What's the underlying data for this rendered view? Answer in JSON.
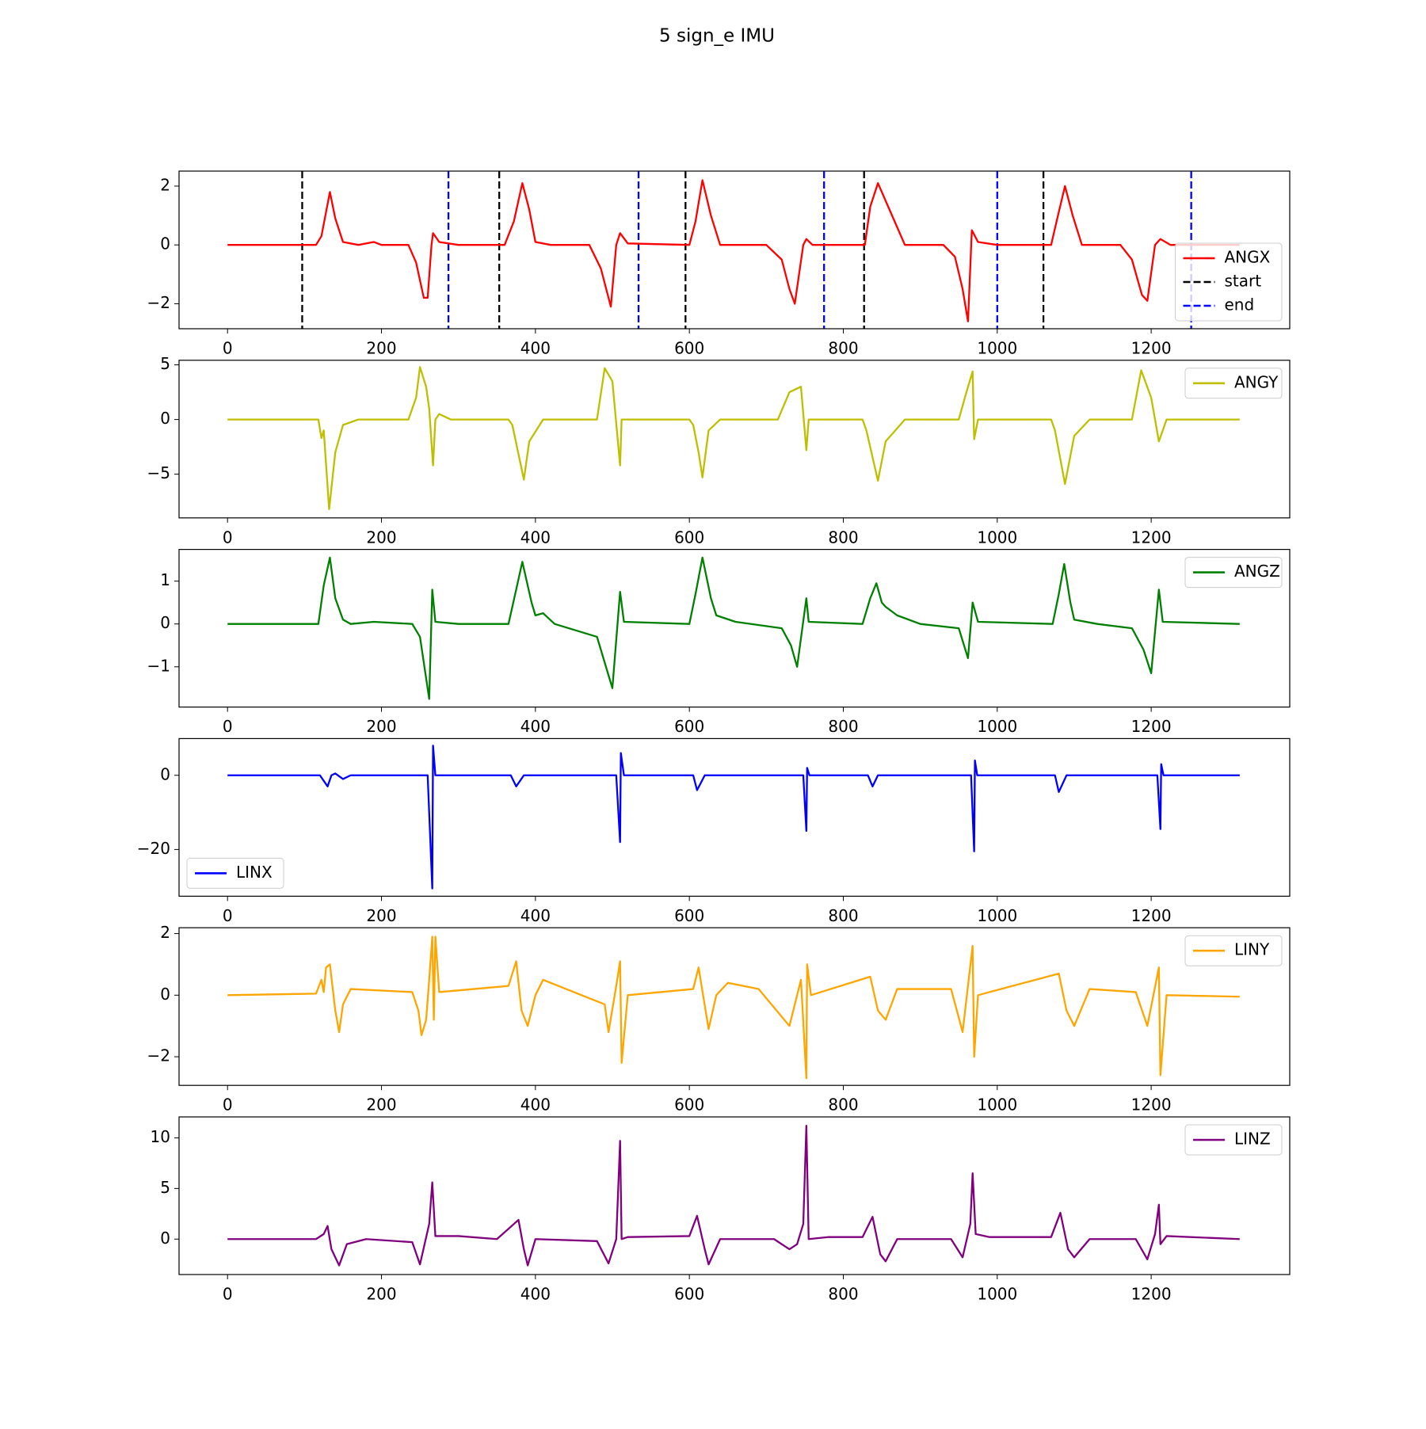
{
  "title": "5 sign_e IMU",
  "chart_data": [
    {
      "type": "line",
      "legend": "lower right",
      "xlim": [
        -63,
        1380
      ],
      "xticks": [
        0,
        200,
        400,
        600,
        800,
        1000,
        1200
      ],
      "ylim": [
        -2.85,
        2.51
      ],
      "yticks": [
        {
          "value": -2,
          "label": "−2"
        },
        0,
        2
      ],
      "series": [
        {
          "name": "ANGX",
          "color": "#ff0000",
          "x": [
            0,
            115,
            122,
            133,
            140,
            150,
            170,
            190,
            200,
            235,
            245,
            255,
            260,
            265,
            267,
            275,
            300,
            360,
            372,
            383,
            392,
            400,
            420,
            470,
            485,
            498,
            505,
            510,
            520,
            600,
            608,
            617,
            628,
            640,
            700,
            720,
            730,
            737,
            748,
            752,
            760,
            828,
            835,
            845,
            860,
            880,
            930,
            945,
            955,
            962,
            967,
            975,
            1000,
            1070,
            1078,
            1088,
            1098,
            1110,
            1160,
            1175,
            1188,
            1195,
            1205,
            1212,
            1225,
            1315
          ],
          "values": [
            0,
            0,
            0.3,
            1.8,
            0.9,
            0.1,
            0,
            0.1,
            0,
            0,
            -0.6,
            -1.8,
            -1.8,
            0,
            0.4,
            0.1,
            0,
            0,
            0.8,
            2.1,
            1.2,
            0.1,
            0,
            0,
            -0.8,
            -2.1,
            0,
            0.4,
            0.05,
            0,
            0.8,
            2.2,
            1.0,
            0,
            0,
            -0.5,
            -1.5,
            -2.0,
            0,
            0.2,
            0,
            0,
            1.3,
            2.1,
            1.2,
            0,
            0,
            -0.4,
            -1.5,
            -2.6,
            0.5,
            0.1,
            0,
            0,
            0.9,
            2.0,
            1.0,
            0,
            0,
            -0.5,
            -1.7,
            -1.9,
            0,
            0.2,
            0,
            0
          ]
        }
      ],
      "vlines": [
        {
          "name": "start",
          "color": "#000000",
          "style": "dashed",
          "x": [
            97,
            353,
            595,
            827,
            1060
          ]
        },
        {
          "name": "end",
          "color": "#0000ff",
          "style": "dashed",
          "x": [
            287,
            534,
            775,
            1000,
            1252
          ]
        }
      ]
    },
    {
      "type": "line",
      "legend": "upper right",
      "xlim": [
        -63,
        1380
      ],
      "xticks": [
        0,
        200,
        400,
        600,
        800,
        1000,
        1200
      ],
      "ylim": [
        -9.0,
        5.42
      ],
      "yticks": [
        {
          "value": -5,
          "label": "−5"
        },
        0,
        5
      ],
      "series": [
        {
          "name": "ANGY",
          "color": "#bfbf00",
          "x": [
            0,
            118,
            122,
            125,
            132,
            140,
            150,
            170,
            235,
            245,
            250,
            258,
            262,
            267,
            270,
            275,
            290,
            365,
            370,
            385,
            392,
            410,
            480,
            490,
            500,
            510,
            512,
            520,
            600,
            605,
            612,
            617,
            625,
            640,
            715,
            730,
            745,
            752,
            755,
            825,
            830,
            845,
            855,
            880,
            950,
            960,
            968,
            970,
            975,
            1070,
            1075,
            1088,
            1100,
            1120,
            1175,
            1187,
            1200,
            1210,
            1220,
            1315
          ],
          "values": [
            0,
            0,
            -1.7,
            -1,
            -8.2,
            -3,
            -0.5,
            0,
            0,
            2,
            4.8,
            3,
            1,
            -4.2,
            0,
            0.5,
            0,
            0,
            -0.5,
            -5.5,
            -2,
            0,
            0,
            4.7,
            3.5,
            -4.2,
            0,
            0,
            0,
            -0.5,
            -3,
            -5.3,
            -1,
            0,
            0,
            2.5,
            3,
            -2.8,
            0,
            0,
            -1,
            -5.6,
            -2,
            0,
            0,
            2.5,
            4.4,
            -1.8,
            0,
            0,
            -1,
            -5.9,
            -1.5,
            0,
            0,
            4.5,
            2,
            -2,
            0,
            0
          ]
        }
      ]
    },
    {
      "type": "line",
      "legend": "upper right",
      "xlim": [
        -63,
        1380
      ],
      "xticks": [
        0,
        200,
        400,
        600,
        800,
        1000,
        1200
      ],
      "ylim": [
        -1.94,
        1.74
      ],
      "yticks": [
        {
          "value": -1,
          "label": "−1"
        },
        0,
        1
      ],
      "series": [
        {
          "name": "ANGZ",
          "color": "#008000",
          "x": [
            0,
            118,
            125,
            133,
            140,
            150,
            160,
            190,
            240,
            250,
            262,
            266,
            270,
            300,
            365,
            375,
            383,
            395,
            400,
            410,
            425,
            480,
            490,
            500,
            510,
            515,
            600,
            608,
            617,
            628,
            635,
            660,
            720,
            732,
            740,
            752,
            755,
            825,
            835,
            843,
            850,
            855,
            870,
            900,
            950,
            962,
            968,
            975,
            1072,
            1080,
            1087,
            1095,
            1100,
            1130,
            1175,
            1190,
            1200,
            1210,
            1215,
            1315
          ],
          "values": [
            0,
            0,
            0.9,
            1.55,
            0.6,
            0.1,
            0,
            0.05,
            0,
            -0.3,
            -1.75,
            0.8,
            0.05,
            0,
            0,
            0.8,
            1.45,
            0.5,
            0.2,
            0.25,
            0,
            -0.3,
            -0.9,
            -1.5,
            0.75,
            0.05,
            0,
            0.7,
            1.55,
            0.6,
            0.2,
            0.05,
            -0.1,
            -0.5,
            -1,
            0.6,
            0.05,
            0,
            0.6,
            0.95,
            0.5,
            0.4,
            0.2,
            0,
            -0.1,
            -0.8,
            0.5,
            0.05,
            0,
            0.7,
            1.4,
            0.5,
            0.1,
            0,
            -0.1,
            -0.6,
            -1.15,
            0.8,
            0.05,
            0
          ]
        }
      ]
    },
    {
      "type": "line",
      "legend": "lower left",
      "xlim": [
        -63,
        1380
      ],
      "xticks": [
        0,
        200,
        400,
        600,
        800,
        1000,
        1200
      ],
      "ylim": [
        -32.6,
        9.9
      ],
      "yticks": [
        {
          "value": -20,
          "label": "−20"
        },
        0
      ],
      "series": [
        {
          "name": "LINX",
          "color": "#0000ff",
          "x": [
            0,
            120,
            130,
            135,
            140,
            150,
            160,
            260,
            266,
            267,
            270,
            368,
            375,
            385,
            505,
            510,
            511,
            515,
            605,
            610,
            620,
            748,
            752,
            753,
            756,
            832,
            838,
            845,
            966,
            970,
            971,
            974,
            1075,
            1080,
            1090,
            1208,
            1212,
            1213,
            1216,
            1315
          ],
          "values": [
            0,
            0,
            -3,
            0,
            0.5,
            -1,
            0,
            0,
            -30.5,
            8,
            0,
            0,
            -3,
            0,
            0,
            -18,
            6,
            0,
            0,
            -4,
            0,
            0,
            -15,
            2,
            0,
            0,
            -3,
            0,
            0,
            -20.5,
            4,
            0,
            0,
            -4.5,
            0,
            0,
            -14.5,
            3,
            0,
            0
          ]
        }
      ]
    },
    {
      "type": "line",
      "legend": "upper right",
      "xlim": [
        -63,
        1380
      ],
      "xticks": [
        0,
        200,
        400,
        600,
        800,
        1000,
        1200
      ],
      "ylim": [
        -2.93,
        2.19
      ],
      "yticks": [
        {
          "value": -2,
          "label": "−2"
        },
        0,
        2
      ],
      "series": [
        {
          "name": "LINY",
          "color": "#ffa500",
          "x": [
            0,
            115,
            122,
            125,
            128,
            133,
            140,
            145,
            150,
            160,
            240,
            248,
            252,
            258,
            262,
            266,
            268,
            270,
            275,
            365,
            375,
            382,
            390,
            400,
            410,
            440,
            490,
            495,
            505,
            510,
            512,
            520,
            605,
            612,
            625,
            635,
            650,
            690,
            730,
            745,
            752,
            753,
            758,
            835,
            845,
            855,
            870,
            940,
            955,
            968,
            970,
            975,
            1080,
            1090,
            1100,
            1120,
            1180,
            1195,
            1210,
            1212,
            1220,
            1315
          ],
          "values": [
            0,
            0.05,
            0.5,
            0.1,
            0.9,
            1,
            -0.5,
            -1.2,
            -0.3,
            0.2,
            0.1,
            -0.5,
            -1.3,
            -0.8,
            0.5,
            1.9,
            -0.8,
            1.9,
            0.1,
            0.3,
            1.1,
            -0.5,
            -1,
            0,
            0.5,
            0.2,
            -0.3,
            -1.2,
            0.3,
            1.1,
            -2.2,
            0,
            0.2,
            0.9,
            -1.1,
            0,
            0.4,
            0.2,
            -1,
            0.5,
            -2.7,
            1,
            0,
            0.6,
            -0.5,
            -0.8,
            0.2,
            0.2,
            -1.2,
            1.6,
            -2,
            0,
            0.7,
            -0.5,
            -1,
            0.2,
            0.1,
            -1,
            0.9,
            -2.6,
            0,
            -0.05
          ]
        }
      ]
    },
    {
      "type": "line",
      "legend": "upper right",
      "xlim": [
        -63,
        1380
      ],
      "xticks": [
        0,
        200,
        400,
        600,
        800,
        1000,
        1200
      ],
      "ylim": [
        -3.5,
        12.07
      ],
      "yticks": [
        0,
        5,
        10
      ],
      "series": [
        {
          "name": "LINZ",
          "color": "#800080",
          "x": [
            0,
            115,
            125,
            130,
            135,
            145,
            155,
            180,
            240,
            250,
            262,
            266,
            270,
            300,
            350,
            378,
            385,
            390,
            400,
            480,
            495,
            505,
            510,
            512,
            520,
            600,
            610,
            620,
            625,
            640,
            710,
            730,
            740,
            748,
            752,
            755,
            780,
            825,
            838,
            848,
            855,
            870,
            940,
            955,
            965,
            968,
            972,
            990,
            1070,
            1082,
            1092,
            1100,
            1120,
            1180,
            1195,
            1205,
            1210,
            1212,
            1220,
            1315
          ],
          "values": [
            0,
            0,
            0.5,
            1.3,
            -1,
            -2.6,
            -0.5,
            0,
            -0.3,
            -2.5,
            1.5,
            5.6,
            0.3,
            0.3,
            0,
            1.9,
            -1,
            -2.6,
            0,
            -0.2,
            -2.4,
            0,
            9.7,
            0,
            0.2,
            0.3,
            2.3,
            -1,
            -2.5,
            0,
            0,
            -1,
            -0.5,
            1.5,
            11.2,
            0,
            0.2,
            0.2,
            2.2,
            -1.5,
            -2.2,
            0,
            0,
            -1.8,
            1.5,
            6.5,
            0.5,
            0.2,
            0.2,
            2.6,
            -1,
            -1.8,
            0,
            0,
            -2,
            0.5,
            3.4,
            -0.5,
            0.3,
            0
          ]
        }
      ]
    }
  ]
}
